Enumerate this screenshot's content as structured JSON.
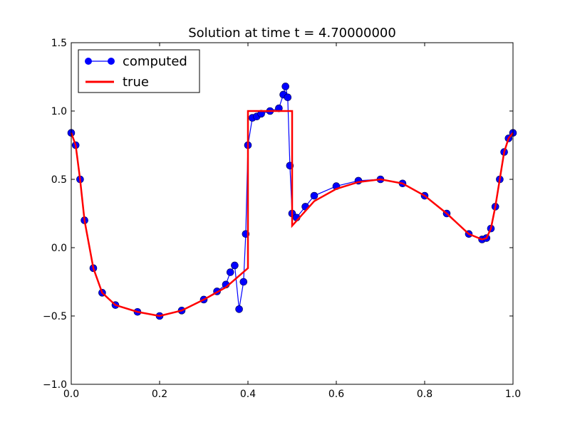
{
  "chart_data": {
    "type": "line",
    "title": "Solution at time t =     4.70000000",
    "xlabel": "",
    "ylabel": "",
    "xlim": [
      0.0,
      1.0
    ],
    "ylim": [
      -1.0,
      1.5
    ],
    "xticks": [
      "0.0",
      "0.2",
      "0.4",
      "0.6",
      "0.8",
      "1.0"
    ],
    "yticks": [
      "−1.0",
      "−0.5",
      "0.0",
      "0.5",
      "1.0",
      "1.5"
    ],
    "grid": false,
    "legend": {
      "placement": "top-left",
      "entries": [
        "computed",
        "true"
      ]
    },
    "series": [
      {
        "name": "computed",
        "style": "line-with-circle-markers",
        "color": "#0000ff",
        "x": [
          0.0,
          0.01,
          0.02,
          0.03,
          0.05,
          0.07,
          0.1,
          0.15,
          0.2,
          0.25,
          0.3,
          0.33,
          0.35,
          0.36,
          0.37,
          0.38,
          0.39,
          0.395,
          0.4,
          0.41,
          0.42,
          0.43,
          0.45,
          0.47,
          0.48,
          0.485,
          0.49,
          0.495,
          0.5,
          0.51,
          0.53,
          0.55,
          0.6,
          0.65,
          0.7,
          0.75,
          0.8,
          0.85,
          0.9,
          0.93,
          0.94,
          0.95,
          0.96,
          0.97,
          0.98,
          0.99,
          1.0
        ],
        "y": [
          0.84,
          0.75,
          0.5,
          0.2,
          -0.15,
          -0.33,
          -0.42,
          -0.47,
          -0.5,
          -0.46,
          -0.38,
          -0.32,
          -0.27,
          -0.18,
          -0.13,
          -0.45,
          -0.25,
          0.1,
          0.75,
          0.95,
          0.96,
          0.98,
          1.0,
          1.02,
          1.12,
          1.18,
          1.1,
          0.6,
          0.25,
          0.22,
          0.3,
          0.38,
          0.45,
          0.49,
          0.5,
          0.47,
          0.38,
          0.25,
          0.1,
          0.06,
          0.07,
          0.14,
          0.3,
          0.5,
          0.7,
          0.8,
          0.84
        ]
      },
      {
        "name": "true",
        "style": "line",
        "color": "#ff0000",
        "x": [
          0.0,
          0.01,
          0.02,
          0.03,
          0.05,
          0.07,
          0.1,
          0.15,
          0.2,
          0.25,
          0.3,
          0.35,
          0.4,
          0.4,
          0.5,
          0.5,
          0.55,
          0.6,
          0.65,
          0.7,
          0.75,
          0.8,
          0.85,
          0.9,
          0.93,
          0.94,
          0.95,
          0.96,
          0.97,
          0.98,
          0.99,
          1.0
        ],
        "y": [
          0.84,
          0.75,
          0.5,
          0.2,
          -0.15,
          -0.33,
          -0.42,
          -0.47,
          -0.5,
          -0.46,
          -0.38,
          -0.29,
          -0.15,
          1.0,
          1.0,
          0.16,
          0.34,
          0.43,
          0.48,
          0.5,
          0.47,
          0.38,
          0.25,
          0.1,
          0.06,
          0.07,
          0.14,
          0.3,
          0.5,
          0.7,
          0.8,
          0.84
        ]
      }
    ]
  }
}
